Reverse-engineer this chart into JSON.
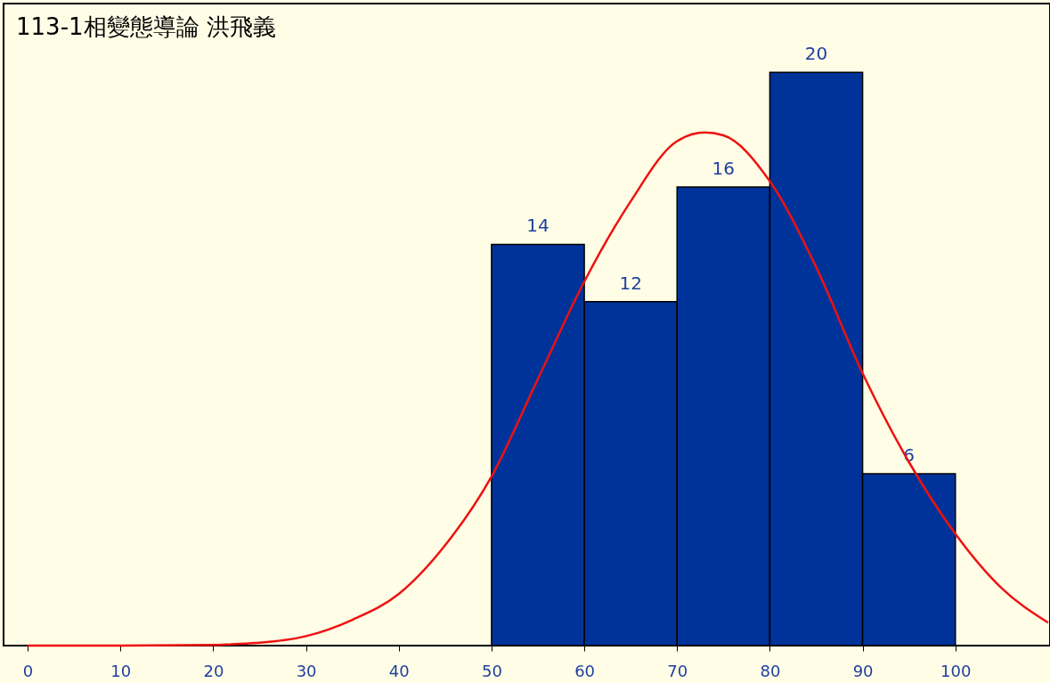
{
  "chart_data": {
    "type": "histogram",
    "title": "113-1相變態導論 洪飛義",
    "bins": [
      50,
      60,
      70,
      80,
      90,
      100
    ],
    "values": [
      14,
      12,
      16,
      20,
      6
    ],
    "color": "#003399",
    "value_labels": [
      "14",
      "12",
      "16",
      "20",
      "6"
    ],
    "xlim": [
      -2.6,
      110.2
    ],
    "xticks": [
      0,
      10,
      20,
      30,
      40,
      50,
      60,
      70,
      80,
      90,
      100
    ],
    "ylim": [
      0,
      22.4
    ],
    "tick_labels": "x",
    "grid": false,
    "legend": false,
    "series": [
      {
        "type": "line",
        "color": "#ee1111",
        "x": [
          0,
          10,
          20,
          22,
          25,
          30,
          35,
          40,
          45,
          50,
          55,
          60,
          65,
          70,
          73,
          75,
          80,
          85,
          90,
          95,
          100,
          105,
          110
        ],
        "values": [
          0,
          0,
          0.02,
          0.05,
          0.1,
          0.33,
          0.9,
          1.8,
          3.5,
          5.9,
          9.3,
          12.7,
          15.5,
          17.6,
          17.9,
          17.8,
          16.2,
          13.2,
          9.5,
          6.4,
          3.9,
          2.0,
          0.8
        ]
      }
    ]
  }
}
